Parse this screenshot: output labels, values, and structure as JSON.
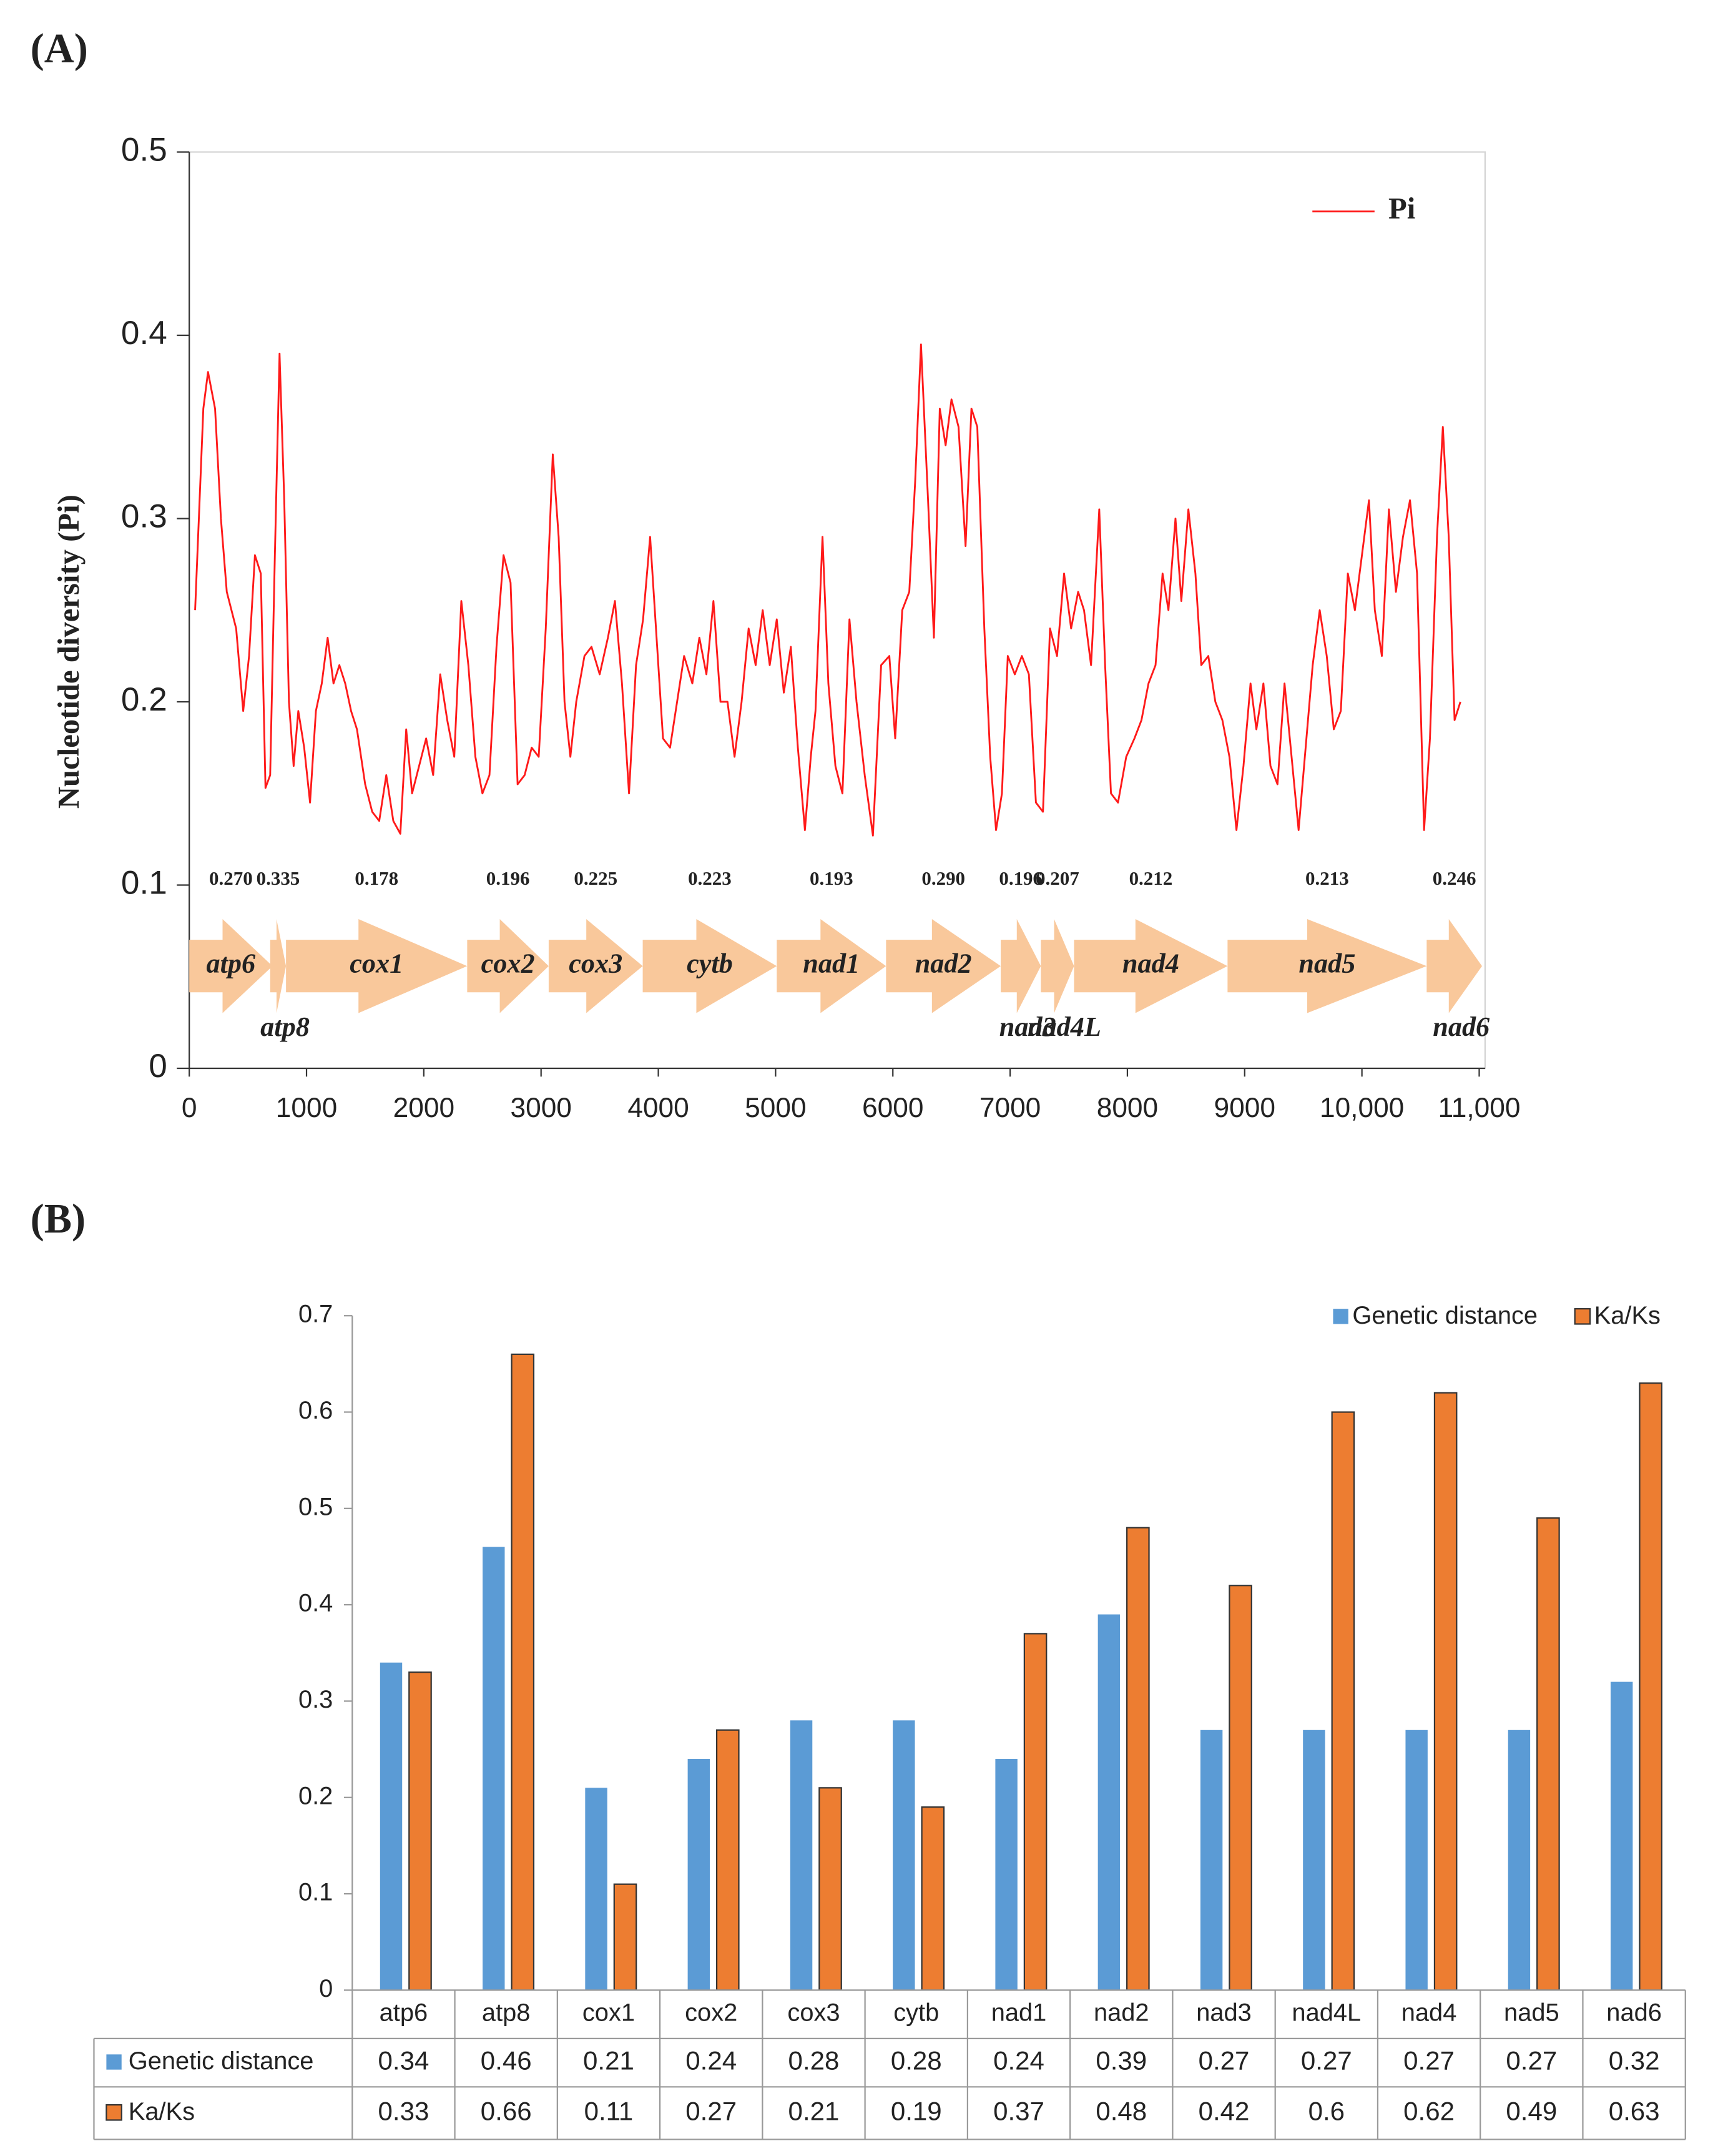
{
  "chart_data": [
    {
      "type": "line",
      "panel": "(A)",
      "ylabel": "Nucleotide diversity (Pi)",
      "xlim": [
        0,
        11050
      ],
      "ylim": [
        0,
        0.5
      ],
      "xticks": [
        0,
        1000,
        2000,
        3000,
        4000,
        5000,
        6000,
        7000,
        8000,
        9000,
        {
          "value": 10000,
          "label": "10,000"
        },
        {
          "value": 11000,
          "label": "11,000"
        }
      ],
      "yticks": [
        0,
        0.1,
        0.2,
        0.3,
        0.4,
        0.5
      ],
      "grid": false,
      "legend": "upper right",
      "x": [
        50,
        120,
        160,
        220,
        270,
        320,
        400,
        460,
        510,
        560,
        610,
        650,
        690,
        730,
        770,
        810,
        850,
        890,
        930,
        980,
        1030,
        1080,
        1130,
        1180,
        1230,
        1280,
        1330,
        1380,
        1430,
        1500,
        1560,
        1620,
        1680,
        1740,
        1800,
        1850,
        1900,
        1960,
        2020,
        2080,
        2140,
        2200,
        2260,
        2320,
        2380,
        2440,
        2500,
        2560,
        2620,
        2680,
        2740,
        2800,
        2860,
        2920,
        2980,
        3040,
        3100,
        3150,
        3200,
        3250,
        3300,
        3370,
        3430,
        3500,
        3570,
        3630,
        3690,
        3750,
        3810,
        3870,
        3930,
        3980,
        4040,
        4100,
        4160,
        4220,
        4290,
        4350,
        4410,
        4470,
        4530,
        4590,
        4650,
        4710,
        4770,
        4830,
        4890,
        4950,
        5010,
        5070,
        5130,
        5190,
        5250,
        5300,
        5340,
        5400,
        5450,
        5510,
        5570,
        5630,
        5690,
        5760,
        5830,
        5900,
        5970,
        6020,
        6080,
        6140,
        6190,
        6240,
        6300,
        6350,
        6400,
        6450,
        6500,
        6560,
        6620,
        6670,
        6720,
        6780,
        6830,
        6880,
        6930,
        6980,
        7040,
        7100,
        7160,
        7220,
        7280,
        7340,
        7400,
        7460,
        7520,
        7580,
        7630,
        7690,
        7760,
        7810,
        7860,
        7920,
        7990,
        8060,
        8120,
        8180,
        8240,
        8300,
        8350,
        8410,
        8460,
        8520,
        8580,
        8630,
        8690,
        8750,
        8810,
        8870,
        8930,
        8990,
        9050,
        9100,
        9160,
        9220,
        9280,
        9340,
        9400,
        9460,
        9520,
        9580,
        9640,
        9700,
        9760,
        9820,
        9880,
        9940,
        10000,
        10060,
        10110,
        10170,
        10230,
        10290,
        10350,
        10410,
        10470,
        10530,
        10580,
        10640,
        10690,
        10740,
        10790,
        10840
      ],
      "series": [
        {
          "name": "Pi",
          "color": "#ff1a1a",
          "values": [
            0.25,
            0.36,
            0.38,
            0.36,
            0.3,
            0.26,
            0.24,
            0.195,
            0.225,
            0.28,
            0.27,
            0.153,
            0.16,
            0.28,
            0.39,
            0.31,
            0.2,
            0.165,
            0.195,
            0.175,
            0.145,
            0.195,
            0.21,
            0.235,
            0.21,
            0.22,
            0.21,
            0.195,
            0.185,
            0.155,
            0.14,
            0.135,
            0.16,
            0.135,
            0.128,
            0.185,
            0.15,
            0.165,
            0.18,
            0.16,
            0.215,
            0.19,
            0.17,
            0.255,
            0.22,
            0.17,
            0.15,
            0.16,
            0.23,
            0.28,
            0.265,
            0.155,
            0.16,
            0.175,
            0.17,
            0.24,
            0.335,
            0.29,
            0.2,
            0.17,
            0.2,
            0.225,
            0.23,
            0.215,
            0.235,
            0.255,
            0.21,
            0.15,
            0.22,
            0.245,
            0.29,
            0.24,
            0.18,
            0.175,
            0.2,
            0.225,
            0.21,
            0.235,
            0.215,
            0.255,
            0.2,
            0.2,
            0.17,
            0.2,
            0.24,
            0.22,
            0.25,
            0.22,
            0.245,
            0.205,
            0.23,
            0.175,
            0.13,
            0.17,
            0.195,
            0.29,
            0.21,
            0.165,
            0.15,
            0.245,
            0.2,
            0.16,
            0.127,
            0.22,
            0.225,
            0.18,
            0.25,
            0.26,
            0.32,
            0.395,
            0.31,
            0.235,
            0.36,
            0.34,
            0.365,
            0.35,
            0.285,
            0.36,
            0.35,
            0.24,
            0.17,
            0.13,
            0.15,
            0.225,
            0.215,
            0.225,
            0.215,
            0.145,
            0.14,
            0.24,
            0.225,
            0.27,
            0.24,
            0.26,
            0.25,
            0.22,
            0.305,
            0.22,
            0.15,
            0.145,
            0.17,
            0.18,
            0.19,
            0.21,
            0.22,
            0.27,
            0.25,
            0.3,
            0.255,
            0.305,
            0.27,
            0.22,
            0.225,
            0.2,
            0.19,
            0.17,
            0.13,
            0.165,
            0.21,
            0.185,
            0.21,
            0.165,
            0.155,
            0.21,
            0.17,
            0.13,
            0.175,
            0.22,
            0.25,
            0.225,
            0.185,
            0.195,
            0.27,
            0.25,
            0.28,
            0.31,
            0.25,
            0.225,
            0.305,
            0.26,
            0.29,
            0.31,
            0.27,
            0.13,
            0.18,
            0.29,
            0.35,
            0.29,
            0.19,
            0.2
          ]
        }
      ],
      "genes": [
        {
          "name": "atp6",
          "pi": "0.270",
          "start": 0,
          "end": 710
        },
        {
          "name": "atp8",
          "pi": "0.335",
          "start": 690,
          "end": 825
        },
        {
          "name": "cox1",
          "pi": "0.178",
          "start": 825,
          "end": 2370
        },
        {
          "name": "cox2",
          "pi": "0.196",
          "start": 2370,
          "end": 3065
        },
        {
          "name": "cox3",
          "pi": "0.225",
          "start": 3065,
          "end": 3867
        },
        {
          "name": "cytb",
          "pi": "0.223",
          "start": 3867,
          "end": 5010
        },
        {
          "name": "nad1",
          "pi": "0.193",
          "start": 5010,
          "end": 5942
        },
        {
          "name": "nad2",
          "pi": "0.290",
          "start": 5942,
          "end": 6920
        },
        {
          "name": "nad3",
          "pi": "0.196",
          "start": 6920,
          "end": 7262
        },
        {
          "name": "nad4L",
          "pi": "0.207",
          "start": 7262,
          "end": 7545
        },
        {
          "name": "nad4",
          "pi": "0.212",
          "start": 7545,
          "end": 8854
        },
        {
          "name": "nad5",
          "pi": "0.213",
          "start": 8854,
          "end": 10552
        },
        {
          "name": "nad6",
          "pi": "0.246",
          "start": 10552,
          "end": 11024
        }
      ],
      "gene_color": "#f9c89b"
    },
    {
      "type": "bar",
      "panel": "(B)",
      "categories": [
        "atp6",
        "atp8",
        "cox1",
        "cox2",
        "cox3",
        "cytb",
        "nad1",
        "nad2",
        "nad3",
        "nad4L",
        "nad4",
        "nad5",
        "nad6"
      ],
      "ylim": [
        0,
        0.7
      ],
      "yticks": [
        0,
        0.1,
        0.2,
        0.3,
        0.4,
        0.5,
        0.6,
        0.7
      ],
      "grid": false,
      "legend": "upper right",
      "data_table": true,
      "series": [
        {
          "name": "Genetic distance",
          "color": "#5b9bd5",
          "values": [
            0.34,
            0.46,
            0.21,
            0.24,
            0.28,
            0.28,
            0.24,
            0.39,
            0.27,
            0.27,
            0.27,
            0.27,
            0.32
          ]
        },
        {
          "name": "Ka/Ks",
          "color": "#ed7d31",
          "values": [
            0.33,
            0.66,
            0.11,
            0.27,
            0.21,
            0.19,
            0.37,
            0.48,
            0.42,
            0.6,
            0.62,
            0.49,
            0.63
          ]
        }
      ]
    }
  ]
}
